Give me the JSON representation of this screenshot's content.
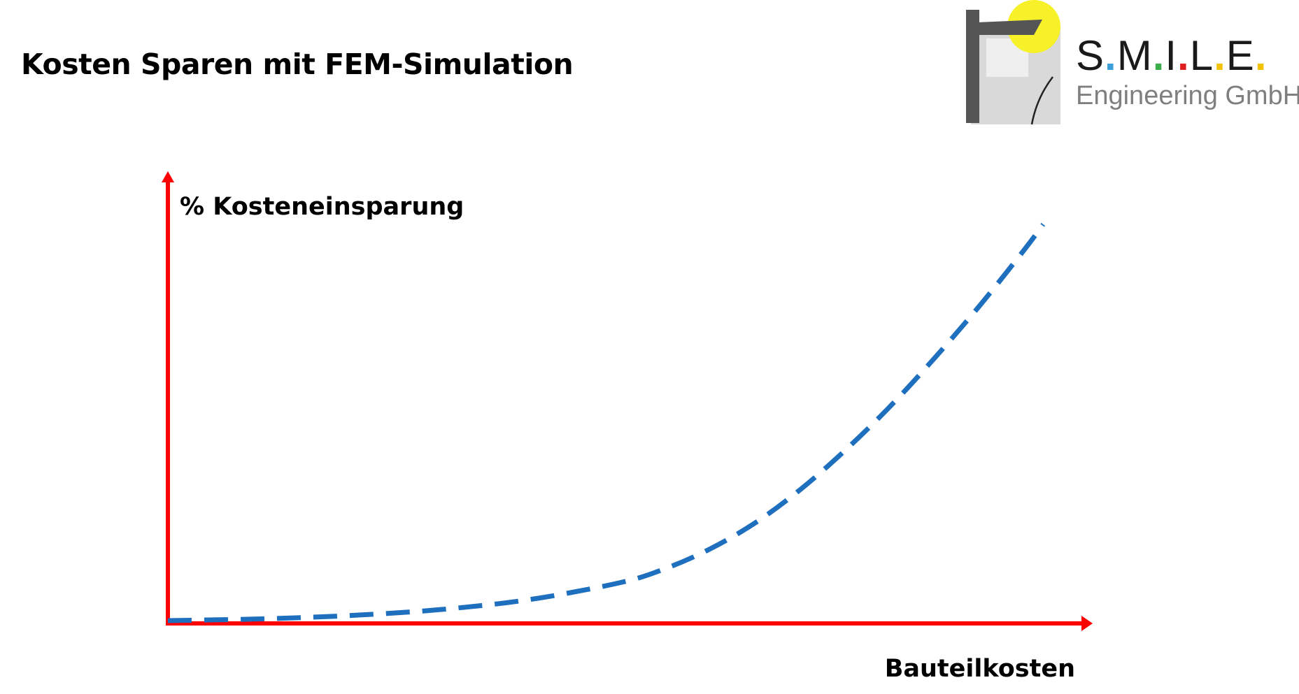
{
  "header": {
    "title": "Kosten Sparen mit FEM-Simulation"
  },
  "logo": {
    "letters": [
      "S",
      "M",
      "I",
      "L",
      "E"
    ],
    "dot_colors": [
      "#3a9fd8",
      "#3cae49",
      "#e02020",
      "#f2c200",
      "#f2c200"
    ],
    "subtitle": "Engineering GmbH",
    "sun_color": "#f7f12a",
    "bar_color": "#555555"
  },
  "chart_data": {
    "type": "line",
    "title": "",
    "xlabel": "Bauteilkosten",
    "ylabel": "% Kosteneinsparung",
    "xlim": [
      0,
      1
    ],
    "ylim": [
      0,
      1
    ],
    "grid": false,
    "axis_color": "#ff0000",
    "series": [
      {
        "line_style": "dashed",
        "color": "#1f6fbf",
        "x": [
          0.0,
          0.1,
          0.2,
          0.3,
          0.4,
          0.5,
          0.55,
          0.6,
          0.65,
          0.7,
          0.75,
          0.8,
          0.85,
          0.9,
          0.95,
          0.97
        ],
        "y": [
          0.0,
          0.004,
          0.012,
          0.026,
          0.05,
          0.09,
          0.123,
          0.17,
          0.232,
          0.311,
          0.405,
          0.51,
          0.627,
          0.752,
          0.887,
          0.945
        ]
      }
    ]
  }
}
